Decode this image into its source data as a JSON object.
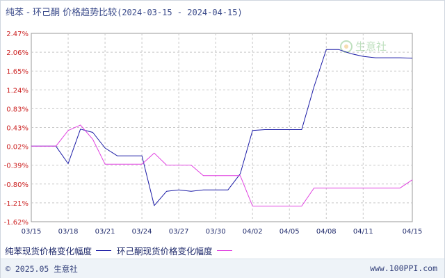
{
  "header": {
    "title": "纯苯 - 环己酮 价格趋势比较",
    "date_range": "(2024-03-15 - 2024-04-15)"
  },
  "watermark": {
    "text": "生意社",
    "icon": "sunflower-logo-icon"
  },
  "footer": {
    "copyright": "© 2025.05 生意社",
    "site": "www.100PPI.com"
  },
  "colors": {
    "benzene": "#1a1aa6",
    "cyclohexanone": "#e040e0",
    "axis_label": "#cc2222",
    "grid": "#c8c8c8"
  },
  "chart_data": {
    "type": "line",
    "x": [
      "03/15",
      "03/16",
      "03/17",
      "03/18",
      "03/19",
      "03/20",
      "03/21",
      "03/22",
      "03/23",
      "03/24",
      "03/25",
      "03/26",
      "03/27",
      "03/28",
      "03/29",
      "03/30",
      "03/31",
      "04/01",
      "04/02",
      "04/03",
      "04/04",
      "04/05",
      "04/06",
      "04/07",
      "04/08",
      "04/09",
      "04/10",
      "04/11",
      "04/12",
      "04/13",
      "04/14",
      "04/15"
    ],
    "x_ticks": [
      "03/15",
      "03/18",
      "03/21",
      "03/24",
      "03/27",
      "03/30",
      "04/02",
      "04/05",
      "04/08",
      "04/11",
      "04/15"
    ],
    "y_ticks": [
      "2.47%",
      "2.06%",
      "1.65%",
      "1.24%",
      "0.83%",
      "0.43%",
      "0.02%",
      "-0.39%",
      "-0.80%",
      "-1.21%",
      "-1.62%"
    ],
    "ylim": [
      -1.62,
      2.47
    ],
    "series": [
      {
        "name": "纯苯现货价格变化幅度",
        "color": "#1a1aa6",
        "values": [
          0.02,
          0.02,
          0.02,
          -0.36,
          0.39,
          0.32,
          -0.02,
          -0.19,
          -0.19,
          -0.19,
          -1.27,
          -0.96,
          -0.93,
          -0.96,
          -0.93,
          -0.93,
          -0.93,
          -0.58,
          0.36,
          0.38,
          0.38,
          0.38,
          0.38,
          1.31,
          2.12,
          2.12,
          2.03,
          1.97,
          1.94,
          1.94,
          1.94,
          1.93
        ]
      },
      {
        "name": "环己酮现货价格变化幅度",
        "color": "#e040e0",
        "values": [
          0.02,
          0.02,
          0.02,
          0.36,
          0.48,
          0.17,
          -0.37,
          -0.37,
          -0.37,
          -0.37,
          -0.13,
          -0.39,
          -0.39,
          -0.39,
          -0.62,
          -0.62,
          -0.62,
          -0.62,
          -1.28,
          -1.28,
          -1.28,
          -1.28,
          -1.28,
          -0.89,
          -0.89,
          -0.89,
          -0.89,
          -0.89,
          -0.89,
          -0.89,
          -0.89,
          -0.71
        ]
      }
    ],
    "grid": true
  }
}
